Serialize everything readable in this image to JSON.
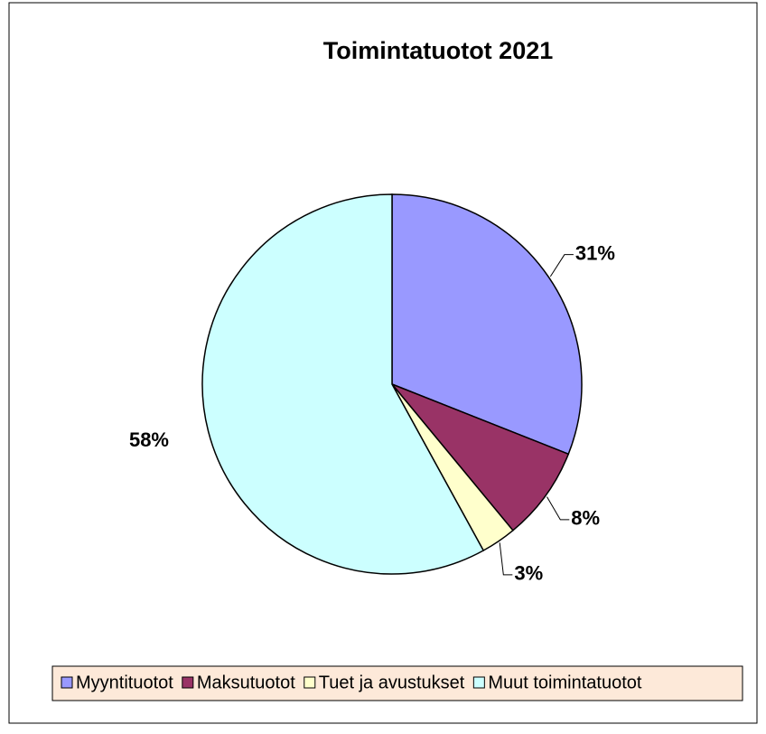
{
  "chart_data": {
    "type": "pie",
    "title": "Toimintatuotot 2021",
    "categories": [
      "Myyntituotot",
      "Maksutuotot",
      "Tuet ja avustukset",
      "Muut toimintatuotot"
    ],
    "values": [
      31,
      8,
      3,
      58
    ],
    "value_labels": [
      "31%",
      "8%",
      "3%",
      "58%"
    ],
    "colors": [
      "#9999ff",
      "#993366",
      "#ffffcc",
      "#ccffff"
    ],
    "legend": "bottom"
  }
}
